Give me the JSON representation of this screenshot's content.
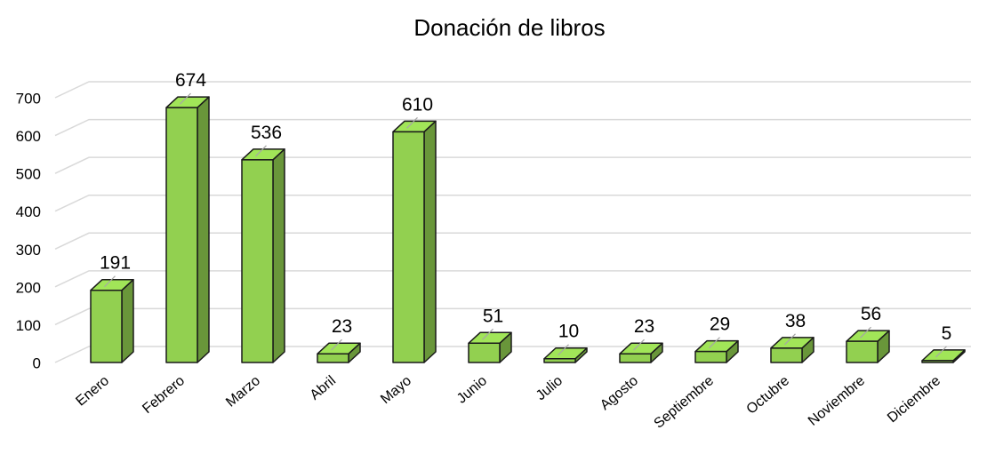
{
  "chart_data": {
    "type": "bar3d",
    "title": "Donación de libros",
    "categories": [
      "Enero",
      "Febrero",
      "Marzo",
      "Abril",
      "Mayo",
      "Junio",
      "Julio",
      "Agosto",
      "Septiembre",
      "Octubre",
      "Noviembre",
      "Diciembre"
    ],
    "values": [
      191,
      674,
      536,
      23,
      610,
      51,
      10,
      23,
      29,
      38,
      56,
      5
    ],
    "color": "#92d050",
    "ylim": [
      0,
      700
    ],
    "yticks": [
      0,
      100,
      200,
      300,
      400,
      500,
      600,
      700
    ],
    "grid": true
  }
}
